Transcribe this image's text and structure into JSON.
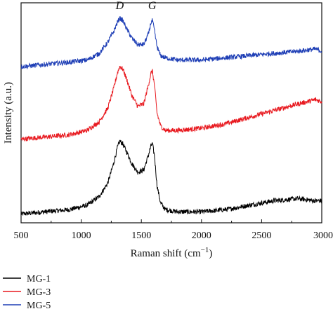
{
  "chart_data": {
    "type": "line",
    "xlabel": "Raman shift (cm",
    "xlabel_sup": "−1",
    "xlabel_close": ")",
    "ylabel": "Intensity (a.u.)",
    "xlim": [
      500,
      3000
    ],
    "ylim": [
      0,
      100
    ],
    "x_ticks": [
      500,
      1000,
      1500,
      2000,
      2500,
      3000
    ],
    "x_tick_labels": [
      "500",
      "1000",
      "1500",
      "2000",
      "2500",
      "3000"
    ],
    "y_ticks_labeled": false,
    "grid": false,
    "legend_position": "below-chart",
    "annotations": [
      {
        "text": "D",
        "x": 1320
      },
      {
        "text": "G",
        "x": 1590
      }
    ],
    "series": [
      {
        "name": "MG-1",
        "color": "#000000",
        "x": [
          500,
          700,
          900,
          1050,
          1150,
          1220,
          1270,
          1300,
          1320,
          1345,
          1380,
          1420,
          1470,
          1520,
          1560,
          1580,
          1592,
          1610,
          1630,
          1660,
          1700,
          1800,
          2000,
          2200,
          2400,
          2600,
          2800,
          2950,
          3000
        ],
        "y": [
          4,
          5,
          6,
          8,
          12,
          18,
          27,
          34,
          37,
          36,
          32,
          27,
          23,
          24,
          31,
          35,
          36,
          30,
          17,
          9,
          6,
          5,
          5,
          6,
          8,
          10,
          11,
          10,
          10
        ]
      },
      {
        "name": "MG-3",
        "color": "#e8191f",
        "x": [
          500,
          700,
          900,
          1050,
          1150,
          1220,
          1270,
          1300,
          1320,
          1345,
          1380,
          1420,
          1470,
          1520,
          1560,
          1580,
          1592,
          1610,
          1630,
          1660,
          1700,
          1800,
          2000,
          2200,
          2400,
          2600,
          2800,
          2950,
          3000
        ],
        "y": [
          38,
          39,
          40,
          42,
          46,
          52,
          61,
          68,
          71,
          70,
          65,
          58,
          53,
          54,
          63,
          68,
          69,
          62,
          50,
          44,
          42,
          42,
          43,
          45,
          48,
          51,
          54,
          56,
          55
        ]
      },
      {
        "name": "MG-5",
        "color": "#1f3fb6",
        "x": [
          500,
          700,
          900,
          1050,
          1150,
          1220,
          1270,
          1300,
          1320,
          1345,
          1380,
          1420,
          1470,
          1520,
          1560,
          1580,
          1592,
          1610,
          1630,
          1660,
          1700,
          1800,
          2000,
          2200,
          2400,
          2600,
          2800,
          2950,
          3000
        ],
        "y": [
          71,
          72,
          73,
          74,
          77,
          82,
          87,
          91,
          93,
          92,
          88,
          84,
          81,
          81,
          86,
          91,
          92,
          87,
          80,
          76,
          75,
          74,
          74,
          75,
          76,
          77,
          78,
          79,
          78
        ]
      }
    ]
  }
}
